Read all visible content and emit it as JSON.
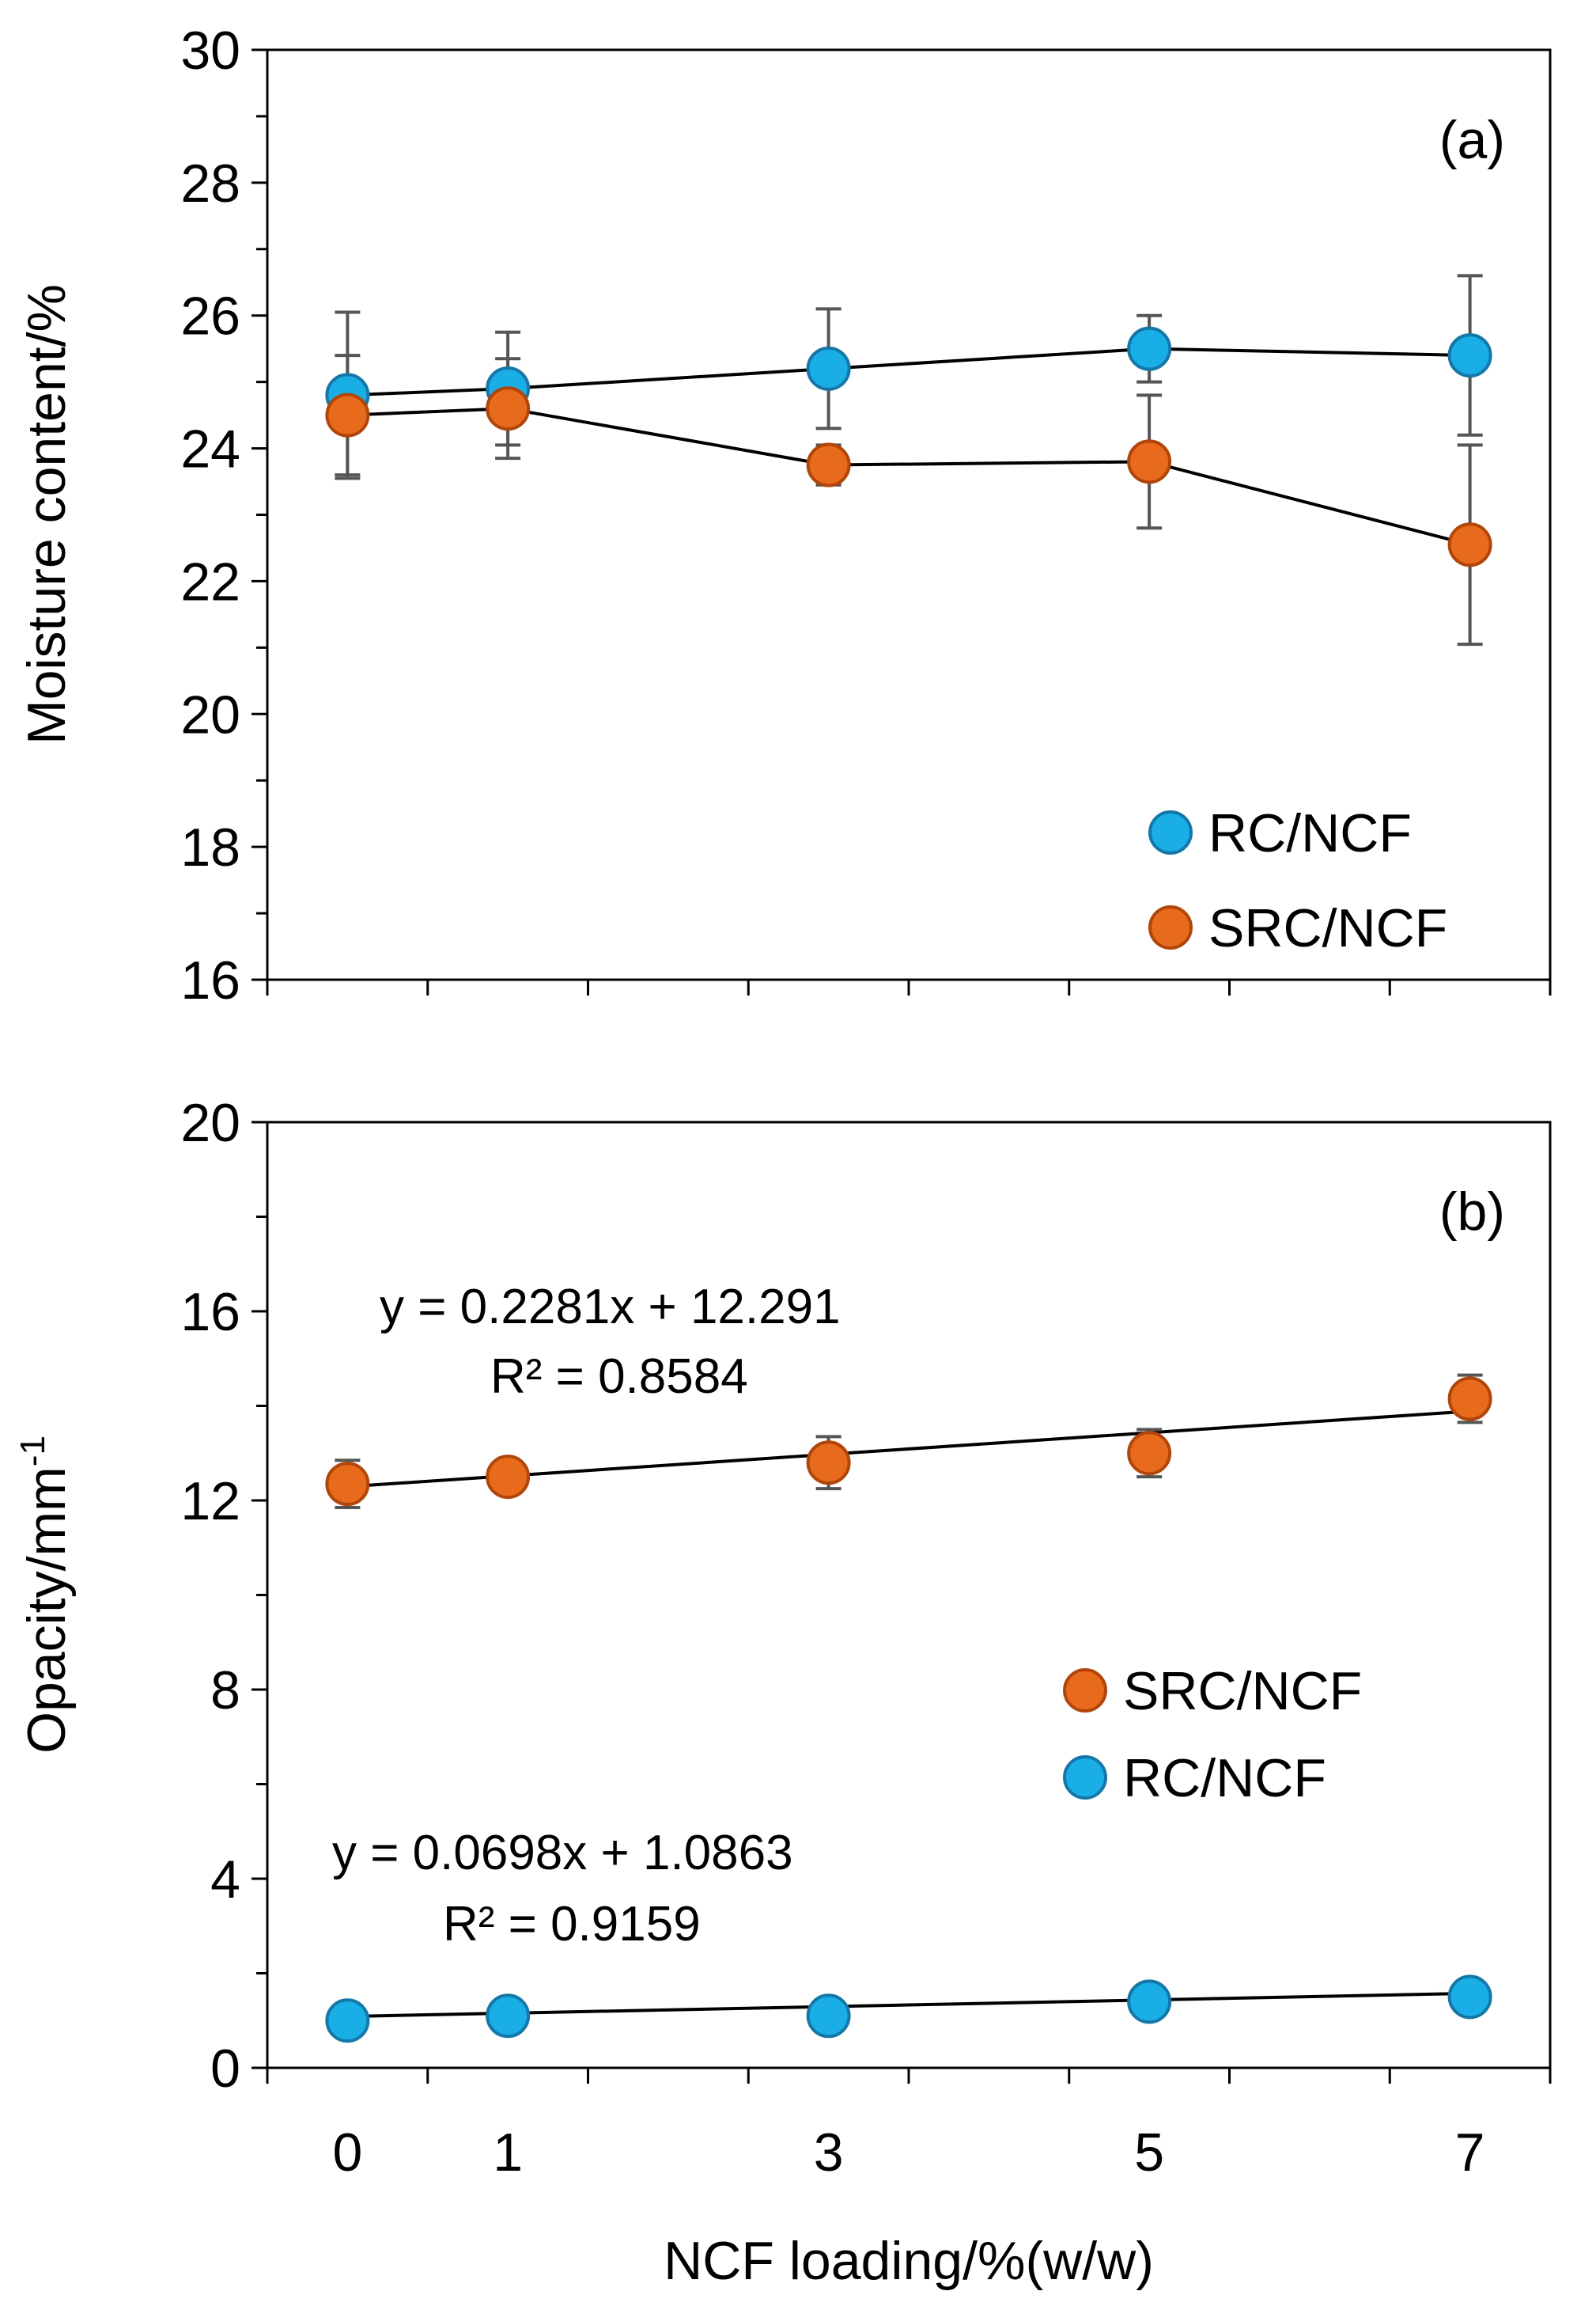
{
  "chart_data": [
    {
      "type": "scatter",
      "panel_label": "(a)",
      "ylabel": "Moisture content/%",
      "xlabel": "",
      "ylim": [
        16,
        30
      ],
      "xlim": [
        -0.5,
        7.5
      ],
      "y_ticks": [
        16,
        18,
        20,
        22,
        24,
        26,
        28,
        30
      ],
      "x_ticks": [
        0,
        1,
        3,
        5,
        7
      ],
      "grid": false,
      "legend_position": "bottom-right",
      "series": [
        {
          "name": "RC/NCF",
          "color": "#1aaee6",
          "x": [
            0,
            1,
            3,
            5,
            7
          ],
          "y": [
            24.8,
            24.9,
            25.2,
            25.5,
            25.4
          ],
          "err": [
            1.25,
            0.85,
            0.9,
            0.5,
            1.2
          ],
          "connect": "line"
        },
        {
          "name": "SRC/NCF",
          "color": "#e86a1c",
          "x": [
            0,
            1,
            3,
            5,
            7
          ],
          "y": [
            24.5,
            24.6,
            23.75,
            23.8,
            22.55
          ],
          "err": [
            0.9,
            0.75,
            0.3,
            1.0,
            1.5
          ],
          "connect": "line"
        }
      ],
      "legend_order": [
        "RC/NCF",
        "SRC/NCF"
      ],
      "annotations": []
    },
    {
      "type": "scatter",
      "panel_label": "(b)",
      "ylabel": "Opacity/mm",
      "ylabel_superscript": "-1",
      "xlabel": "NCF loading/%(w/w)",
      "ylim": [
        0,
        20
      ],
      "xlim": [
        -0.5,
        7.5
      ],
      "y_ticks": [
        0,
        4,
        8,
        12,
        16,
        20
      ],
      "x_ticks": [
        0,
        1,
        3,
        5,
        7
      ],
      "grid": false,
      "legend_position": "middle-right",
      "series": [
        {
          "name": "SRC/NCF",
          "color": "#e86a1c",
          "x": [
            0,
            1,
            3,
            5,
            7
          ],
          "y": [
            12.35,
            12.5,
            12.8,
            13.0,
            14.15
          ],
          "err": [
            0.5,
            0.3,
            0.55,
            0.5,
            0.5
          ],
          "connect": "fit",
          "fit": {
            "slope": 0.2281,
            "intercept": 12.291
          }
        },
        {
          "name": "RC/NCF",
          "color": "#1aaee6",
          "x": [
            0,
            1,
            3,
            5,
            7
          ],
          "y": [
            1.0,
            1.1,
            1.1,
            1.4,
            1.5
          ],
          "err": [
            0,
            0,
            0,
            0,
            0
          ],
          "connect": "fit",
          "fit": {
            "slope": 0.0698,
            "intercept": 1.0863
          }
        }
      ],
      "legend_order": [
        "SRC/NCF",
        "RC/NCF"
      ],
      "annotations": [
        {
          "id": "src-equation",
          "text": "y = 0.2281x + 12.291"
        },
        {
          "id": "src-r2",
          "text": "R² = 0.8584"
        },
        {
          "id": "rc-equation",
          "text": "y = 0.0698x + 1.0863"
        },
        {
          "id": "rc-r2",
          "text": "R² = 0.9159"
        }
      ]
    }
  ]
}
